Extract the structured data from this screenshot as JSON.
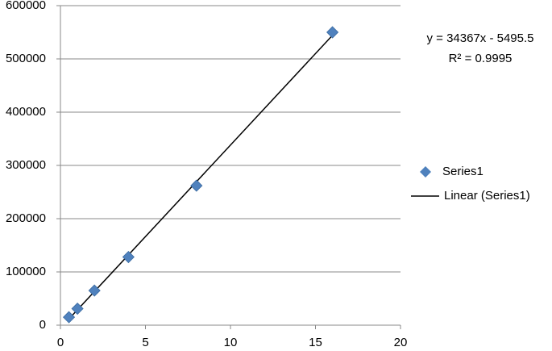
{
  "chart_data": {
    "type": "scatter",
    "series": [
      {
        "name": "Series1",
        "color": "#4f81bd",
        "x": [
          0.5,
          1,
          2,
          4,
          8,
          16
        ],
        "values": [
          15000,
          31000,
          65000,
          128000,
          262000,
          550000
        ]
      }
    ],
    "trendline": {
      "name": "Linear (Series1)",
      "slope": 34367,
      "intercept": -5495.5,
      "color": "#000000",
      "equation": "y = 34367x - 5495.5",
      "r_squared": "R² = 0.9995"
    },
    "xlim": [
      0,
      20
    ],
    "xticks": [
      0,
      5,
      10,
      15,
      20
    ],
    "ylim": [
      0,
      600000
    ],
    "yticks": [
      0,
      100000,
      200000,
      300000,
      400000,
      500000,
      600000
    ],
    "grid": true,
    "legend": "right"
  }
}
